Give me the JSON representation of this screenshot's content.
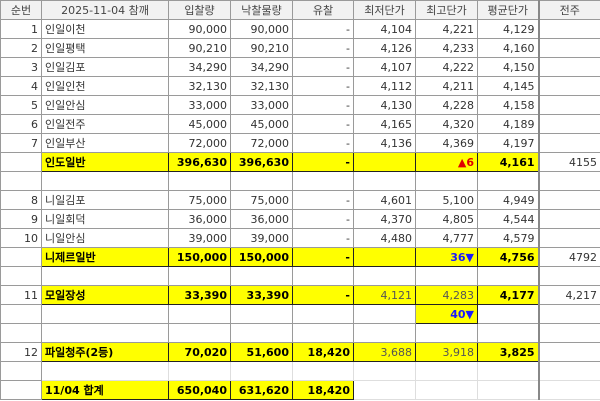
{
  "headers": [
    "순번",
    "2025-11-04 참깨",
    "입찰량",
    "낙찰물량",
    "유찰",
    "최저단가",
    "최고단가",
    "평균단가",
    "전주"
  ],
  "rows": [
    {
      "kind": "item",
      "no": "1",
      "name": "인일이천",
      "bid": "90,000",
      "won": "90,000",
      "fail": "-",
      "min": "4,104",
      "max": "4,221",
      "avg": "4,129",
      "prev": ""
    },
    {
      "kind": "item",
      "no": "2",
      "name": "인일평택",
      "bid": "90,210",
      "won": "90,210",
      "fail": "-",
      "min": "4,126",
      "max": "4,233",
      "avg": "4,160",
      "prev": ""
    },
    {
      "kind": "item",
      "no": "3",
      "name": "인일김포",
      "bid": "34,290",
      "won": "34,290",
      "fail": "-",
      "min": "4,107",
      "max": "4,222",
      "avg": "4,150",
      "prev": ""
    },
    {
      "kind": "item",
      "no": "4",
      "name": "인일인천",
      "bid": "32,130",
      "won": "32,130",
      "fail": "-",
      "min": "4,112",
      "max": "4,211",
      "avg": "4,145",
      "prev": ""
    },
    {
      "kind": "item",
      "no": "5",
      "name": "인일안심",
      "bid": "33,000",
      "won": "33,000",
      "fail": "-",
      "min": "4,130",
      "max": "4,228",
      "avg": "4,158",
      "prev": ""
    },
    {
      "kind": "item",
      "no": "6",
      "name": "인일전주",
      "bid": "45,000",
      "won": "45,000",
      "fail": "-",
      "min": "4,165",
      "max": "4,320",
      "avg": "4,189",
      "prev": ""
    },
    {
      "kind": "item",
      "no": "7",
      "name": "인일부산",
      "bid": "72,000",
      "won": "72,000",
      "fail": "-",
      "min": "4,136",
      "max": "4,369",
      "avg": "4,197",
      "prev": ""
    },
    {
      "kind": "sub",
      "no": "",
      "name": "인도일반",
      "bid": "396,630",
      "won": "396,630",
      "fail": "-",
      "min": "",
      "max": "▲6",
      "maxClass": "up",
      "avg": "4,161",
      "prev": "4155"
    },
    {
      "kind": "blank"
    },
    {
      "kind": "item",
      "no": "8",
      "name": "니일김포",
      "bid": "75,000",
      "won": "75,000",
      "fail": "-",
      "min": "4,601",
      "max": "5,100",
      "avg": "4,949",
      "prev": ""
    },
    {
      "kind": "item",
      "no": "9",
      "name": "니일회덕",
      "bid": "36,000",
      "won": "36,000",
      "fail": "-",
      "min": "4,370",
      "max": "4,805",
      "avg": "4,544",
      "prev": ""
    },
    {
      "kind": "item",
      "no": "10",
      "name": "니일안심",
      "bid": "39,000",
      "won": "39,000",
      "fail": "-",
      "min": "4,480",
      "max": "4,777",
      "avg": "4,579",
      "prev": ""
    },
    {
      "kind": "sub",
      "no": "",
      "name": "니제르일반",
      "bid": "150,000",
      "won": "150,000",
      "fail": "-",
      "min": "",
      "max": "36▼",
      "maxClass": "dn",
      "avg": "4,756",
      "prev": "4792"
    },
    {
      "kind": "blank"
    },
    {
      "kind": "sub",
      "no": "11",
      "name": "모일장성",
      "bid": "33,390",
      "won": "33,390",
      "fail": "-",
      "min": "4,121",
      "max": "4,283",
      "avg": "4,177",
      "prev": "4,217"
    },
    {
      "kind": "note",
      "max": "40▼",
      "maxClass": "dn"
    },
    {
      "kind": "blank"
    },
    {
      "kind": "sub",
      "no": "12",
      "name": "파일청주(2등)",
      "bid": "70,020",
      "won": "51,600",
      "fail": "18,420",
      "min": "3,688",
      "max": "3,918",
      "avg": "3,825",
      "prev": ""
    },
    {
      "kind": "gap"
    },
    {
      "kind": "total",
      "no": "",
      "name": "11/04 합계",
      "bid": "650,040",
      "won": "631,620",
      "fail": "18,420"
    }
  ]
}
